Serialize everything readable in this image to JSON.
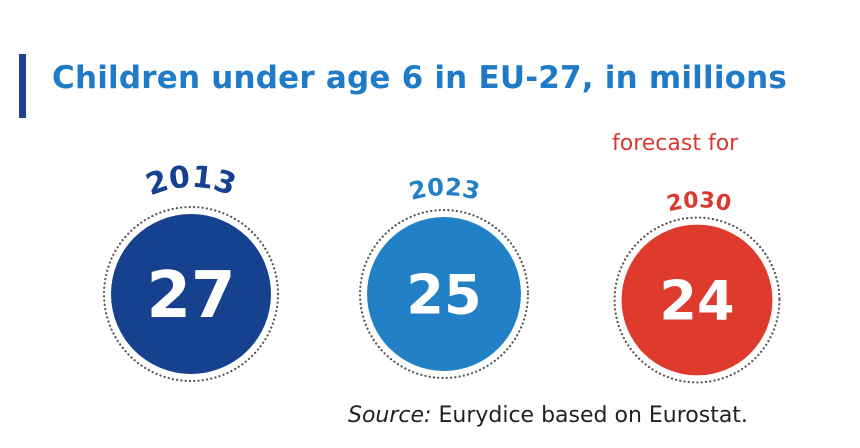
{
  "title": "Children under age 6 in EU-27, in millions",
  "annotation": "forecast for",
  "source": {
    "label": "Source:",
    "text": "Eurydice based on Eurostat."
  },
  "colors": {
    "title": "#1f7ac8",
    "accent_bar": "#1f3f95",
    "forecast_text": "#d93a2f"
  },
  "chart_data": {
    "type": "bubble",
    "unit": "millions",
    "categories": [
      "2013",
      "2023",
      "2030"
    ],
    "values": [
      27,
      25,
      24
    ],
    "forecast": [
      false,
      false,
      true
    ],
    "colors": [
      "#16418f",
      "#2281c6",
      "#df3a2e"
    ]
  }
}
